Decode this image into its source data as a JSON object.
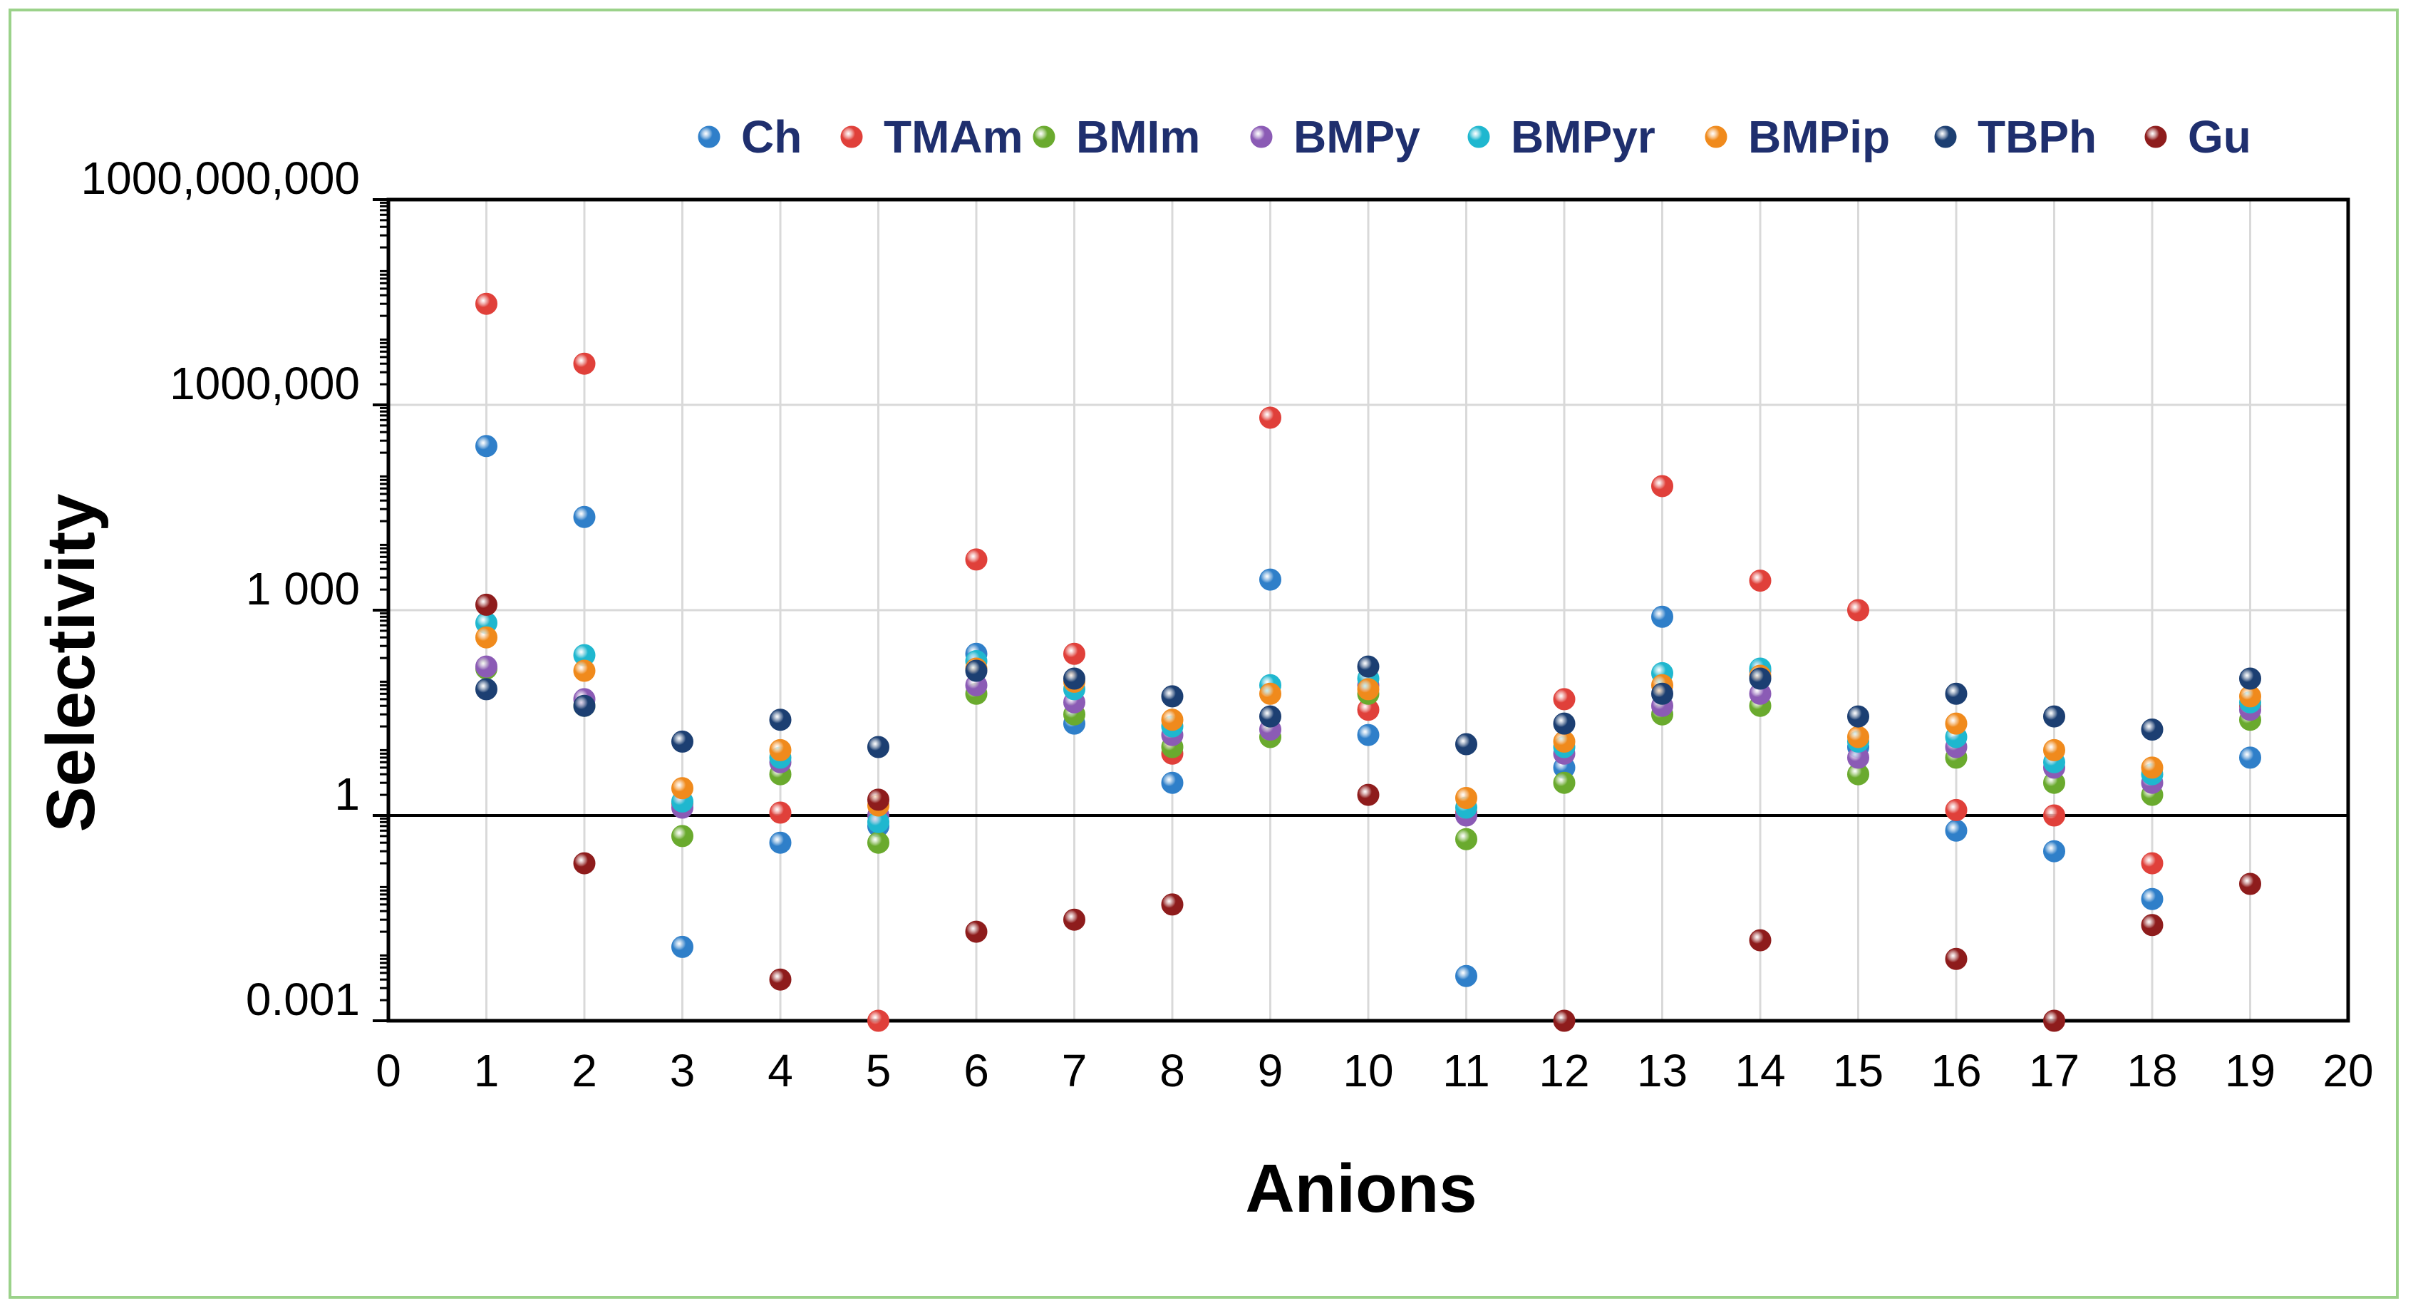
{
  "chart_data": {
    "type": "scatter",
    "title": "",
    "xlabel": "Anions",
    "ylabel": "Selectivity",
    "xlim": [
      0,
      20
    ],
    "xticks": [
      "0",
      "1",
      "2",
      "3",
      "4",
      "5",
      "6",
      "7",
      "8",
      "9",
      "10",
      "11",
      "12",
      "13",
      "14",
      "15",
      "16",
      "17",
      "18",
      "19",
      "20"
    ],
    "yscale": "log",
    "ylim": [
      0.001,
      1000000000
    ],
    "yticks": [
      {
        "value": 0.001,
        "label": "0.001"
      },
      {
        "value": 1,
        "label": "1"
      },
      {
        "value": 1000,
        "label": "1 000"
      },
      {
        "value": 1000000,
        "label": "1000,000"
      },
      {
        "value": 1000000000,
        "label": "1000,000,000"
      }
    ],
    "legend_position": "top",
    "series": [
      {
        "name": "Ch",
        "color": "#2f7fc9",
        "points": [
          [
            1,
            250000
          ],
          [
            2,
            23000
          ],
          [
            3,
            0.012
          ],
          [
            4,
            0.4
          ],
          [
            5,
            0.7
          ],
          [
            6,
            230
          ],
          [
            7,
            22
          ],
          [
            8,
            3
          ],
          [
            9,
            2800
          ],
          [
            10,
            15
          ],
          [
            11,
            0.0045
          ],
          [
            12,
            5
          ],
          [
            13,
            800
          ],
          [
            14,
            130
          ],
          [
            15,
            10
          ],
          [
            16,
            0.6
          ],
          [
            17,
            0.3
          ],
          [
            18,
            0.06
          ],
          [
            19,
            7
          ]
        ]
      },
      {
        "name": "TMAm",
        "color": "#e0403a",
        "points": [
          [
            1,
            30000000
          ],
          [
            2,
            4000000
          ],
          [
            3,
            1.5
          ],
          [
            4,
            1.1
          ],
          [
            5,
            0.001
          ],
          [
            6,
            5500
          ],
          [
            7,
            230
          ],
          [
            8,
            8
          ],
          [
            9,
            650000
          ],
          [
            10,
            35
          ],
          [
            11,
            1.1
          ],
          [
            12,
            50
          ],
          [
            13,
            65000
          ],
          [
            14,
            2700
          ],
          [
            15,
            1000
          ],
          [
            16,
            1.2
          ],
          [
            17,
            1
          ],
          [
            18,
            0.2
          ],
          [
            19,
            40
          ]
        ]
      },
      {
        "name": "BMIm",
        "color": "#6aaa2e",
        "points": [
          [
            1,
            140
          ],
          [
            2,
            40
          ],
          [
            3,
            0.5
          ],
          [
            4,
            4
          ],
          [
            5,
            0.4
          ],
          [
            6,
            60
          ],
          [
            7,
            30
          ],
          [
            8,
            10
          ],
          [
            9,
            14
          ],
          [
            10,
            60
          ],
          [
            11,
            0.45
          ],
          [
            12,
            3
          ],
          [
            13,
            30
          ],
          [
            14,
            40
          ],
          [
            15,
            4
          ],
          [
            16,
            7
          ],
          [
            17,
            3
          ],
          [
            18,
            2
          ],
          [
            19,
            25
          ]
        ]
      },
      {
        "name": "BMPy",
        "color": "#8b5bb5",
        "points": [
          [
            1,
            150
          ],
          [
            2,
            50
          ],
          [
            3,
            1.3
          ],
          [
            4,
            6
          ],
          [
            5,
            1
          ],
          [
            6,
            80
          ],
          [
            7,
            45
          ],
          [
            8,
            15
          ],
          [
            9,
            18
          ],
          [
            10,
            80
          ],
          [
            11,
            1
          ],
          [
            12,
            8
          ],
          [
            13,
            40
          ],
          [
            14,
            60
          ],
          [
            15,
            7
          ],
          [
            16,
            10
          ],
          [
            17,
            5
          ],
          [
            18,
            3
          ],
          [
            19,
            35
          ]
        ]
      },
      {
        "name": "BMPyr",
        "color": "#1fb7cf",
        "points": [
          [
            1,
            650
          ],
          [
            2,
            220
          ],
          [
            3,
            1.6
          ],
          [
            4,
            7
          ],
          [
            5,
            0.8
          ],
          [
            6,
            180
          ],
          [
            7,
            70
          ],
          [
            8,
            20
          ],
          [
            9,
            80
          ],
          [
            10,
            100
          ],
          [
            11,
            1.3
          ],
          [
            12,
            10
          ],
          [
            13,
            120
          ],
          [
            14,
            140
          ],
          [
            15,
            12
          ],
          [
            16,
            14
          ],
          [
            17,
            6
          ],
          [
            18,
            4
          ],
          [
            19,
            45
          ]
        ]
      },
      {
        "name": "BMPip",
        "color": "#f08a1c",
        "points": [
          [
            1,
            400
          ],
          [
            2,
            130
          ],
          [
            3,
            2.5
          ],
          [
            4,
            9
          ],
          [
            5,
            1.4
          ],
          [
            6,
            140
          ],
          [
            7,
            90
          ],
          [
            8,
            25
          ],
          [
            9,
            60
          ],
          [
            10,
            70
          ],
          [
            11,
            1.8
          ],
          [
            12,
            12
          ],
          [
            13,
            80
          ],
          [
            14,
            110
          ],
          [
            15,
            14
          ],
          [
            16,
            22
          ],
          [
            17,
            9
          ],
          [
            18,
            5
          ],
          [
            19,
            55
          ]
        ]
      },
      {
        "name": "TBPh",
        "color": "#1c3f72",
        "points": [
          [
            1,
            70
          ],
          [
            2,
            40
          ],
          [
            3,
            12
          ],
          [
            4,
            25
          ],
          [
            5,
            10
          ],
          [
            6,
            130
          ],
          [
            7,
            100
          ],
          [
            8,
            55
          ],
          [
            9,
            28
          ],
          [
            10,
            150
          ],
          [
            11,
            11
          ],
          [
            12,
            22
          ],
          [
            13,
            60
          ],
          [
            14,
            100
          ],
          [
            15,
            28
          ],
          [
            16,
            60
          ],
          [
            17,
            28
          ],
          [
            18,
            18
          ],
          [
            19,
            100
          ]
        ]
      },
      {
        "name": "Gu",
        "color": "#8e1c1c",
        "points": [
          [
            1,
            1200
          ],
          [
            2,
            0.2
          ],
          [
            4,
            0.004
          ],
          [
            5,
            1.7
          ],
          [
            6,
            0.02
          ],
          [
            7,
            0.03
          ],
          [
            8,
            0.05
          ],
          [
            10,
            2
          ],
          [
            12,
            0.001
          ],
          [
            14,
            0.015
          ],
          [
            16,
            0.008
          ],
          [
            17,
            0.001
          ],
          [
            18,
            0.025
          ],
          [
            19,
            0.1
          ]
        ]
      }
    ]
  }
}
